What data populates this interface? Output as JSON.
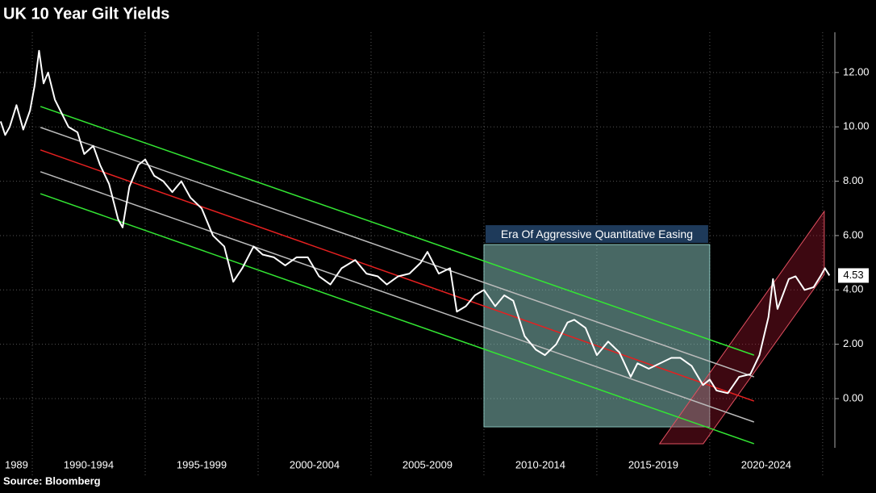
{
  "chart_data": {
    "type": "line",
    "title": "UK 10 Year Gilt Yields",
    "source": "Source: Bloomberg",
    "xlim": [
      1988.57,
      2025.54
    ],
    "ylim": [
      -1.81,
      13.48
    ],
    "yticks": [
      {
        "value": 0,
        "label": "0.00"
      },
      {
        "value": 2,
        "label": "2.00"
      },
      {
        "value": 4,
        "label": "4.00"
      },
      {
        "value": 6,
        "label": "6.00"
      },
      {
        "value": 8,
        "label": "8.00"
      },
      {
        "value": 10,
        "label": "10.00"
      },
      {
        "value": 12,
        "label": "12.00"
      }
    ],
    "xticks": [
      {
        "value": 1989.3,
        "label": "1989"
      },
      {
        "value": 1992.5,
        "label": "1990-1994"
      },
      {
        "value": 1997.5,
        "label": "1995-1999"
      },
      {
        "value": 2002.5,
        "label": "2000-2004"
      },
      {
        "value": 2007.5,
        "label": "2005-2009"
      },
      {
        "value": 2012.5,
        "label": "2010-2014"
      },
      {
        "value": 2017.5,
        "label": "2015-2019"
      },
      {
        "value": 2022.5,
        "label": "2020-2024"
      }
    ],
    "xgrid": [
      1990,
      1995,
      2000,
      2005,
      2010,
      2015,
      2020,
      2025
    ],
    "grid": true,
    "series": [
      {
        "color": "#ffffff",
        "x": [
          1988.6,
          1988.8,
          1989.0,
          1989.3,
          1989.6,
          1989.9,
          1990.1,
          1990.3,
          1990.5,
          1990.7,
          1991.0,
          1991.3,
          1991.6,
          1992.0,
          1992.3,
          1992.7,
          1993.0,
          1993.4,
          1993.8,
          1994.0,
          1994.3,
          1994.7,
          1995.0,
          1995.4,
          1995.8,
          1996.2,
          1996.6,
          1997.0,
          1997.5,
          1998.0,
          1998.5,
          1998.9,
          1999.3,
          1999.8,
          2000.2,
          2000.7,
          2001.2,
          2001.7,
          2002.2,
          2002.7,
          2003.2,
          2003.7,
          2004.3,
          2004.8,
          2005.3,
          2005.7,
          2006.2,
          2006.7,
          2007.2,
          2007.5,
          2008.0,
          2008.5,
          2008.8,
          2009.2,
          2009.6,
          2010.0,
          2010.5,
          2010.9,
          2011.3,
          2011.8,
          2012.3,
          2012.7,
          2013.2,
          2013.7,
          2014.0,
          2014.5,
          2015.0,
          2015.5,
          2016.0,
          2016.5,
          2016.8,
          2017.3,
          2017.8,
          2018.3,
          2018.7,
          2019.2,
          2019.7,
          2020.0,
          2020.3,
          2020.8,
          2021.3,
          2021.8,
          2022.2,
          2022.6,
          2022.8,
          2023.0,
          2023.5,
          2023.8,
          2024.2,
          2024.6,
          2024.9,
          2025.1,
          2025.3
        ],
        "values": [
          10.2,
          9.7,
          10.0,
          10.8,
          9.9,
          10.6,
          11.5,
          12.8,
          11.6,
          12.0,
          11.0,
          10.5,
          10.0,
          9.8,
          9.0,
          9.3,
          8.6,
          7.9,
          6.6,
          6.3,
          7.8,
          8.6,
          8.8,
          8.2,
          8.0,
          7.6,
          8.0,
          7.4,
          7.0,
          6.0,
          5.6,
          4.3,
          4.8,
          5.6,
          5.3,
          5.2,
          4.9,
          5.2,
          5.2,
          4.5,
          4.2,
          4.8,
          5.1,
          4.6,
          4.5,
          4.2,
          4.5,
          4.6,
          5.0,
          5.4,
          4.6,
          4.8,
          3.2,
          3.4,
          3.8,
          4.0,
          3.4,
          3.8,
          3.6,
          2.3,
          1.8,
          1.6,
          2.0,
          2.8,
          2.9,
          2.6,
          1.6,
          2.1,
          1.7,
          0.8,
          1.3,
          1.1,
          1.3,
          1.5,
          1.5,
          1.2,
          0.5,
          0.7,
          0.3,
          0.2,
          0.8,
          0.9,
          1.6,
          3.0,
          4.4,
          3.3,
          4.4,
          4.5,
          4.0,
          4.1,
          4.5,
          4.8,
          4.53
        ]
      }
    ],
    "channel_lines": [
      {
        "color": "#33e633",
        "x": [
          1990.36,
          2021.96
        ],
        "y": [
          10.75,
          1.6
        ]
      },
      {
        "color": "#bbbbbb",
        "x": [
          1990.36,
          2021.96
        ],
        "y": [
          9.98,
          0.8
        ]
      },
      {
        "color": "#e62020",
        "x": [
          1990.36,
          2021.96
        ],
        "y": [
          9.15,
          -0.09
        ]
      },
      {
        "color": "#bbbbbb",
        "x": [
          1990.36,
          2021.96
        ],
        "y": [
          8.35,
          -0.86
        ]
      },
      {
        "color": "#33e633",
        "x": [
          1990.36,
          2021.96
        ],
        "y": [
          7.54,
          -1.66
        ]
      }
    ],
    "qe_box": {
      "label": "Era Of Aggressive Quantitative Easing",
      "x": [
        2010,
        2020
      ],
      "y": [
        -1.04,
        5.67
      ]
    },
    "rising_channel": {
      "x": [
        2017.78,
        2025.07,
        2025.07,
        2019.71
      ],
      "y": [
        -1.66,
        6.89,
        4.57,
        -1.66
      ]
    }
  }
}
